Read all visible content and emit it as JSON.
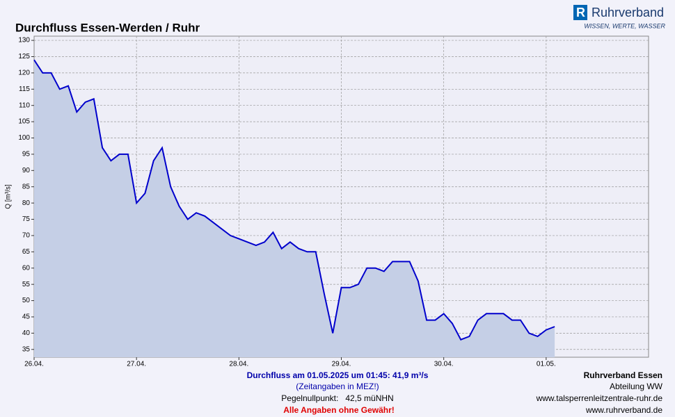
{
  "brand": {
    "name": "Ruhrverband",
    "slogan": "WISSEN, WERTE, WASSER"
  },
  "chart_data": {
    "type": "area",
    "title": "Durchfluss Essen-Werden / Ruhr",
    "y_label": "Q [m³/s]",
    "categories": [
      "26.04.",
      null,
      null,
      null,
      null,
      null,
      null,
      null,
      null,
      null,
      null,
      null,
      "27.04.",
      null,
      null,
      null,
      null,
      null,
      null,
      null,
      null,
      null,
      null,
      null,
      "28.04.",
      null,
      null,
      null,
      null,
      null,
      null,
      null,
      null,
      null,
      null,
      null,
      "29.04.",
      null,
      null,
      null,
      null,
      null,
      null,
      null,
      null,
      null,
      null,
      null,
      "30.04.",
      null,
      null,
      null,
      null,
      null,
      null,
      null,
      null,
      null,
      null,
      null,
      "01.05.",
      null,
      null,
      null,
      null,
      null,
      null,
      null,
      null,
      null,
      null,
      null
    ],
    "values": [
      124,
      120,
      120,
      115,
      116,
      108,
      111,
      112,
      97,
      93,
      95,
      95,
      80,
      83,
      93,
      97,
      85,
      79,
      75,
      77,
      76,
      74,
      72,
      70,
      69,
      68,
      67,
      68,
      71,
      66,
      68,
      66,
      65,
      65,
      52,
      40,
      54,
      54,
      55,
      60,
      60,
      59,
      62,
      62,
      62,
      56,
      44,
      44,
      46,
      43,
      38,
      39,
      44,
      46,
      46,
      46,
      44,
      44,
      40,
      39,
      41,
      42,
      null,
      null,
      null,
      null,
      null,
      null,
      null,
      null,
      null,
      null
    ],
    "color": "#0000cc",
    "fill_color": "#c5cfe6",
    "ylim": [
      32.6,
      131.3
    ],
    "yticks": [
      35,
      40,
      45,
      50,
      55,
      60,
      65,
      70,
      75,
      80,
      85,
      90,
      95,
      100,
      105,
      110,
      115,
      120,
      125,
      130
    ],
    "grid": true
  },
  "footer": {
    "current": "Durchfluss am 01.05.2025 um 01:45: 41,9 m³/s",
    "timezone": "(Zeitangaben in MEZ!)",
    "gauge": "Pegelnullpunkt:   42,5 müNHN",
    "disclaimer": "Alle Angaben ohne Gewähr!",
    "org": "Ruhrverband Essen",
    "dept": "Abteilung WW",
    "url1": "www.talsperrenleitzentrale-ruhr.de",
    "url2": "www.ruhrverband.de"
  }
}
